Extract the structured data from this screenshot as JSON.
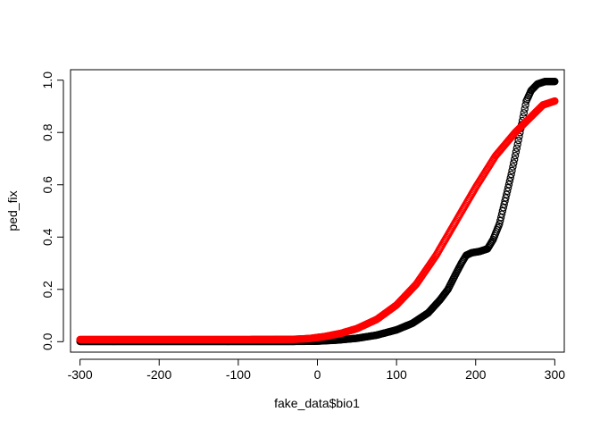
{
  "chart_data": {
    "type": "scatter",
    "title": "",
    "xlabel": "fake_data$bio1",
    "ylabel": "ped_fix",
    "xlim": [
      -312,
      312
    ],
    "ylim": [
      -0.04,
      1.04
    ],
    "x_ticks": [
      -300,
      -200,
      -100,
      0,
      100,
      200,
      300
    ],
    "y_ticks": [
      0.0,
      0.2,
      0.4,
      0.6,
      0.8,
      1.0
    ],
    "x_tick_labels": [
      "-300",
      "-200",
      "-100",
      "0",
      "100",
      "200",
      "300"
    ],
    "y_tick_labels": [
      "0.0",
      "0.2",
      "0.4",
      "0.6",
      "0.8",
      "1.0"
    ],
    "grid": false,
    "legend": "none",
    "x_range": [
      -300,
      300
    ],
    "series": [
      {
        "color": "#000000",
        "marker": "open-circle",
        "points": [
          [
            -300,
            0.001
          ],
          [
            -100,
            0.001
          ],
          [
            -30,
            0.001
          ],
          [
            0,
            0.002
          ],
          [
            25,
            0.006
          ],
          [
            50,
            0.013
          ],
          [
            75,
            0.025
          ],
          [
            100,
            0.045
          ],
          [
            120,
            0.07
          ],
          [
            140,
            0.11
          ],
          [
            155,
            0.16
          ],
          [
            165,
            0.2
          ],
          [
            175,
            0.26
          ],
          [
            182,
            0.3
          ],
          [
            188,
            0.33
          ],
          [
            195,
            0.34
          ],
          [
            205,
            0.345
          ],
          [
            215,
            0.355
          ],
          [
            222,
            0.39
          ],
          [
            230,
            0.45
          ],
          [
            238,
            0.55
          ],
          [
            245,
            0.64
          ],
          [
            252,
            0.74
          ],
          [
            258,
            0.83
          ],
          [
            264,
            0.92
          ],
          [
            270,
            0.96
          ],
          [
            278,
            0.985
          ],
          [
            288,
            0.995
          ],
          [
            300,
            0.995
          ]
        ]
      },
      {
        "color": "#ff0000",
        "marker": "open-circle",
        "points": [
          [
            -300,
            0.008
          ],
          [
            -100,
            0.008
          ],
          [
            -30,
            0.009
          ],
          [
            -10,
            0.012
          ],
          [
            10,
            0.02
          ],
          [
            30,
            0.032
          ],
          [
            50,
            0.05
          ],
          [
            75,
            0.085
          ],
          [
            100,
            0.14
          ],
          [
            125,
            0.22
          ],
          [
            150,
            0.33
          ],
          [
            175,
            0.46
          ],
          [
            200,
            0.59
          ],
          [
            225,
            0.71
          ],
          [
            250,
            0.8
          ],
          [
            270,
            0.86
          ],
          [
            285,
            0.905
          ],
          [
            300,
            0.92
          ]
        ]
      }
    ]
  }
}
